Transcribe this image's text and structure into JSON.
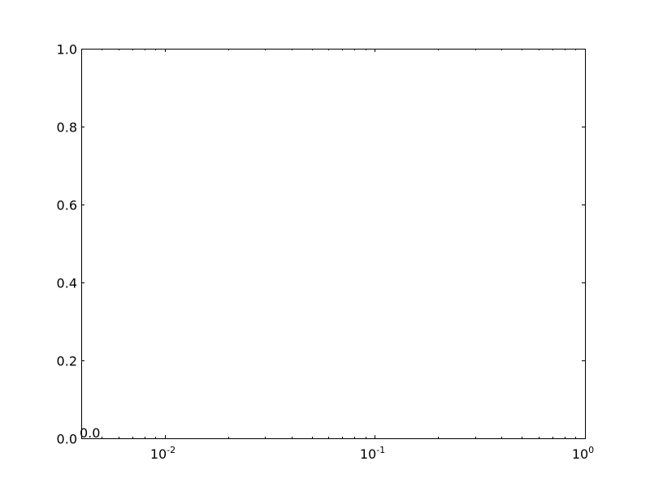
{
  "chart_data": {
    "type": "scatter",
    "title": "",
    "xlabel": "",
    "ylabel": "",
    "x_scale": "log",
    "x_range": [
      0.004,
      1
    ],
    "y_range": [
      0,
      1
    ],
    "x_major_ticks": [
      {
        "value": 0.01,
        "base": "10",
        "exponent": "-2"
      },
      {
        "value": 0.1,
        "base": "10",
        "exponent": "-1"
      },
      {
        "value": 1,
        "base": "10",
        "exponent": "0"
      }
    ],
    "y_ticks": [
      {
        "value": 0.0,
        "label": "0.0"
      },
      {
        "value": 0.2,
        "label": "0.2"
      },
      {
        "value": 0.4,
        "label": "0.4"
      },
      {
        "value": 0.6,
        "label": "0.6"
      },
      {
        "value": 0.8,
        "label": "0.8"
      },
      {
        "value": 1.0,
        "label": "1.0"
      }
    ],
    "annotations": [
      {
        "text": "0.0",
        "x": 0.004,
        "y": 0
      }
    ],
    "series": [],
    "grid": false,
    "colors": {
      "axis": "#000000",
      "background": "#ffffff"
    }
  }
}
